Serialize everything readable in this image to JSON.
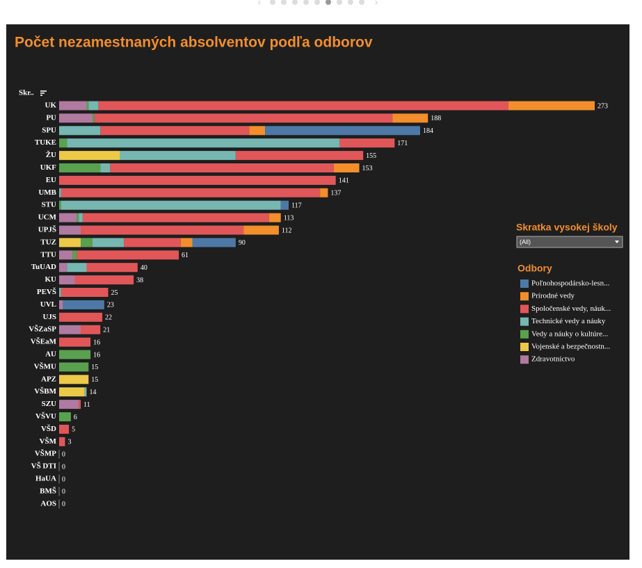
{
  "chart_data": {
    "type": "stacked-bar",
    "title": "Počet nezamestnaných absolventov podľa odborov",
    "y_label": "Skr..",
    "categories": [
      "UK",
      "PU",
      "SPU",
      "TUKE",
      "ŽU",
      "UKF",
      "EU",
      "UMB",
      "STU",
      "UCM",
      "UPJŠ",
      "TUZ",
      "TTU",
      "TuUAD",
      "KU",
      "PEVŠ",
      "UVL",
      "UJS",
      "VŠZaSP",
      "VŠEaM",
      "AU",
      "VŠMU",
      "APZ",
      "VŠBM",
      "SZU",
      "VŠVU",
      "VŠD",
      "VŠM",
      "VŠMP",
      "VŠ DTI",
      "HaUA",
      "BMŠ",
      "AOS"
    ],
    "totals": [
      273,
      188,
      184,
      171,
      155,
      153,
      141,
      137,
      117,
      113,
      112,
      90,
      61,
      40,
      38,
      25,
      23,
      22,
      21,
      16,
      16,
      15,
      15,
      14,
      11,
      6,
      5,
      3,
      0,
      0,
      0,
      0,
      0
    ],
    "xlim": [
      0,
      273
    ],
    "legend_title": "Odbory",
    "series": [
      {
        "name": "Poľnohospodársko-lesn...",
        "color": "#4e79a7",
        "values": [
          0,
          0,
          79,
          0,
          0,
          0,
          0,
          0,
          4,
          0,
          0,
          22,
          0,
          0,
          0,
          0,
          21,
          0,
          0,
          0,
          0,
          0,
          0,
          0,
          0,
          0,
          0,
          0,
          0,
          0,
          0,
          0,
          0
        ]
      },
      {
        "name": "Prírodné vedy",
        "color": "#f28e2b",
        "values": [
          44,
          18,
          8,
          0,
          0,
          13,
          0,
          4,
          0,
          6,
          18,
          6,
          0,
          0,
          0,
          0,
          0,
          0,
          0,
          0,
          0,
          0,
          0,
          0,
          0,
          0,
          0,
          0,
          0,
          0,
          0,
          0,
          0
        ]
      },
      {
        "name": "Spoločenské vedy, náuk...",
        "color": "#e15759",
        "values": [
          209,
          152,
          76,
          28,
          65,
          114,
          141,
          132,
          0,
          95,
          83,
          29,
          52,
          26,
          30,
          24,
          0,
          22,
          10,
          16,
          0,
          0,
          0,
          0,
          1,
          0,
          5,
          3,
          0,
          0,
          0,
          0,
          0
        ]
      },
      {
        "name": "Technické vedy a náuky",
        "color": "#76b7b2",
        "values": [
          5,
          0,
          21,
          139,
          59,
          5,
          0,
          1,
          112,
          2,
          0,
          16,
          0,
          10,
          0,
          1,
          0,
          0,
          0,
          0,
          0,
          0,
          0,
          1,
          0,
          0,
          0,
          0,
          0,
          0,
          0,
          0,
          0
        ]
      },
      {
        "name": "Vedy a náuky o kultúre...",
        "color": "#59a14f",
        "values": [
          1,
          1,
          0,
          4,
          0,
          21,
          0,
          0,
          1,
          1,
          0,
          6,
          2,
          0,
          0,
          0,
          0,
          0,
          0,
          0,
          16,
          15,
          0,
          0,
          0,
          6,
          0,
          0,
          0,
          0,
          0,
          0,
          0
        ]
      },
      {
        "name": "Vojenské a bezpečnostn...",
        "color": "#edc948",
        "values": [
          0,
          0,
          0,
          0,
          31,
          0,
          0,
          0,
          0,
          0,
          0,
          11,
          0,
          0,
          0,
          0,
          0,
          0,
          0,
          0,
          0,
          0,
          15,
          13,
          0,
          0,
          0,
          0,
          0,
          0,
          0,
          0,
          0
        ]
      },
      {
        "name": "Zdravotníctvo",
        "color": "#b07aa1",
        "values": [
          14,
          17,
          0,
          0,
          0,
          0,
          0,
          0,
          0,
          9,
          11,
          0,
          7,
          4,
          8,
          0,
          2,
          0,
          11,
          0,
          0,
          0,
          0,
          0,
          10,
          0,
          0,
          0,
          0,
          0,
          0,
          0,
          0
        ]
      }
    ]
  },
  "filter": {
    "title": "Skratka vysokej školy",
    "value": "(All)"
  }
}
